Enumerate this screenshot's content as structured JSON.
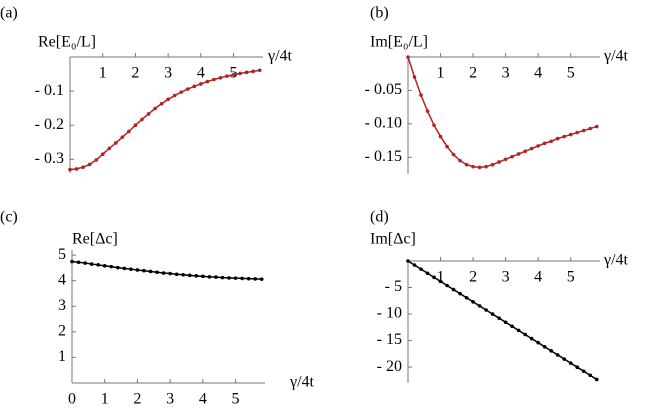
{
  "chart_data": [
    {
      "type": "line",
      "panel_label": "(a)",
      "y_label": "Re[E₀/L]",
      "x_label": "γ/4t",
      "color": "#b22222",
      "x": [
        0,
        0.2,
        0.4,
        0.6,
        0.8,
        1.0,
        1.2,
        1.4,
        1.6,
        1.8,
        2.0,
        2.2,
        2.4,
        2.6,
        2.8,
        3.0,
        3.2,
        3.4,
        3.6,
        3.8,
        4.0,
        4.2,
        4.4,
        4.6,
        4.8,
        5.0,
        5.2,
        5.4,
        5.6,
        5.8
      ],
      "values": [
        -0.33,
        -0.328,
        -0.323,
        -0.315,
        -0.302,
        -0.285,
        -0.268,
        -0.252,
        -0.235,
        -0.218,
        -0.2,
        -0.183,
        -0.167,
        -0.151,
        -0.137,
        -0.124,
        -0.113,
        -0.103,
        -0.094,
        -0.086,
        -0.079,
        -0.072,
        -0.066,
        -0.061,
        -0.056,
        -0.052,
        -0.048,
        -0.045,
        -0.042,
        -0.039
      ],
      "xlim": [
        0,
        5.9
      ],
      "ylim": [
        -0.34,
        0
      ],
      "xticks": [
        1,
        2,
        3,
        4,
        5
      ],
      "yticks": [
        {
          "value": -0.1,
          "label": "- 0.1"
        },
        {
          "value": -0.2,
          "label": "- 0.2"
        },
        {
          "value": -0.3,
          "label": "- 0.3"
        }
      ]
    },
    {
      "type": "line",
      "panel_label": "(b)",
      "y_label": "Im[E₀/L]",
      "x_label": "γ/4t",
      "color": "#b22222",
      "x": [
        0,
        0.2,
        0.4,
        0.6,
        0.8,
        1.0,
        1.2,
        1.4,
        1.6,
        1.8,
        2.0,
        2.2,
        2.4,
        2.6,
        2.8,
        3.0,
        3.2,
        3.4,
        3.6,
        3.8,
        4.0,
        4.2,
        4.4,
        4.6,
        4.8,
        5.0,
        5.2,
        5.4,
        5.6,
        5.8
      ],
      "values": [
        0,
        -0.03,
        -0.057,
        -0.081,
        -0.102,
        -0.119,
        -0.134,
        -0.146,
        -0.155,
        -0.161,
        -0.164,
        -0.165,
        -0.164,
        -0.161,
        -0.157,
        -0.153,
        -0.149,
        -0.145,
        -0.141,
        -0.137,
        -0.133,
        -0.129,
        -0.126,
        -0.122,
        -0.119,
        -0.116,
        -0.113,
        -0.11,
        -0.107,
        -0.104
      ],
      "xlim": [
        0,
        5.9
      ],
      "ylim": [
        -0.175,
        0
      ],
      "xticks": [
        1,
        2,
        3,
        4,
        5
      ],
      "yticks": [
        {
          "value": -0.05,
          "label": "- 0.05"
        },
        {
          "value": -0.1,
          "label": "- 0.10"
        },
        {
          "value": -0.15,
          "label": "- 0.15"
        }
      ]
    },
    {
      "type": "line",
      "panel_label": "(c)",
      "y_label": "Re[Δc]",
      "x_label": "γ/4t",
      "color": "#000000",
      "x": [
        0,
        0.2,
        0.4,
        0.6,
        0.8,
        1.0,
        1.2,
        1.4,
        1.6,
        1.8,
        2.0,
        2.2,
        2.4,
        2.6,
        2.8,
        3.0,
        3.2,
        3.4,
        3.6,
        3.8,
        4.0,
        4.2,
        4.4,
        4.6,
        4.8,
        5.0,
        5.2,
        5.4,
        5.6,
        5.8
      ],
      "values": [
        4.75,
        4.72,
        4.69,
        4.65,
        4.62,
        4.58,
        4.55,
        4.51,
        4.48,
        4.45,
        4.42,
        4.39,
        4.36,
        4.33,
        4.3,
        4.28,
        4.25,
        4.23,
        4.21,
        4.19,
        4.17,
        4.15,
        4.14,
        4.12,
        4.11,
        4.1,
        4.09,
        4.08,
        4.07,
        4.06
      ],
      "xlim": [
        0,
        5.9
      ],
      "ylim": [
        0,
        5.2
      ],
      "xticks": [
        0,
        1,
        2,
        3,
        4,
        5
      ],
      "yticks": [
        1,
        2,
        3,
        4,
        5
      ]
    },
    {
      "type": "line",
      "panel_label": "(d)",
      "y_label": "Im[Δc]",
      "x_label": "γ/4t",
      "color": "#000000",
      "x": [
        0,
        0.2,
        0.4,
        0.6,
        0.8,
        1.0,
        1.2,
        1.4,
        1.6,
        1.8,
        2.0,
        2.2,
        2.4,
        2.6,
        2.8,
        3.0,
        3.2,
        3.4,
        3.6,
        3.8,
        4.0,
        4.2,
        4.4,
        4.6,
        4.8,
        5.0,
        5.2,
        5.4,
        5.6,
        5.8
      ],
      "values": [
        0,
        -0.77,
        -1.54,
        -2.31,
        -3.08,
        -3.85,
        -4.62,
        -5.39,
        -6.16,
        -6.93,
        -7.7,
        -8.47,
        -9.24,
        -10.01,
        -10.78,
        -11.55,
        -12.32,
        -13.09,
        -13.86,
        -14.63,
        -15.4,
        -16.17,
        -16.94,
        -17.71,
        -18.48,
        -19.25,
        -20.02,
        -20.79,
        -21.56,
        -22.33
      ],
      "xlim": [
        0,
        5.9
      ],
      "ylim": [
        -23,
        0
      ],
      "xticks": [
        1,
        2,
        3,
        4,
        5
      ],
      "yticks": [
        {
          "value": -5,
          "label": "- 5"
        },
        {
          "value": -10,
          "label": "- 10"
        },
        {
          "value": -15,
          "label": "- 15"
        },
        {
          "value": -20,
          "label": "- 20"
        }
      ]
    }
  ]
}
